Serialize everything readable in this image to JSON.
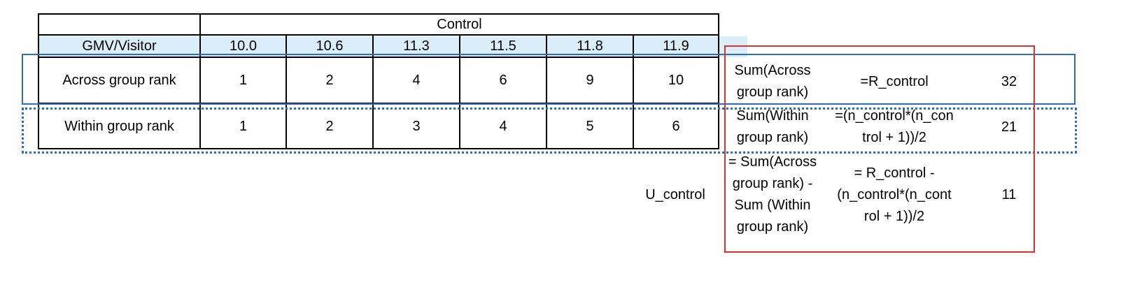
{
  "table": {
    "group_header": "Control",
    "row_label_gmv": "GMV/Visitor",
    "gmv_values": [
      "10.0",
      "10.6",
      "11.3",
      "11.5",
      "11.8",
      "11.9"
    ],
    "row_label_across": "Across group rank",
    "across_ranks": [
      "1",
      "2",
      "4",
      "6",
      "9",
      "10"
    ],
    "row_label_within": "Within group rank",
    "within_ranks": [
      "1",
      "2",
      "3",
      "4",
      "5",
      "6"
    ]
  },
  "summary": {
    "across": {
      "label_line1": "Sum(Across",
      "label_line2": "group rank)",
      "formula": "=R_control",
      "value": "32"
    },
    "within": {
      "label_line1": "Sum(Within",
      "label_line2": "group rank)",
      "formula_line1": "=(n_control*(n_con",
      "formula_line2": "trol + 1))/2",
      "value": "21"
    },
    "u": {
      "name": "U_control",
      "label_line1": "= Sum(Across",
      "label_line2": "group rank) -",
      "label_line3": "Sum (Within",
      "label_line4": "group rank)",
      "formula_line1": "= R_control -",
      "formula_line2": "(n_control*(n_cont",
      "formula_line3": "rol + 1))/2",
      "value": "11"
    }
  },
  "colors": {
    "header_band": "#d9eef8",
    "across_highlight": "#2f6db5",
    "within_highlight": "#2f6db5",
    "summary_highlight": "#e0302b"
  }
}
